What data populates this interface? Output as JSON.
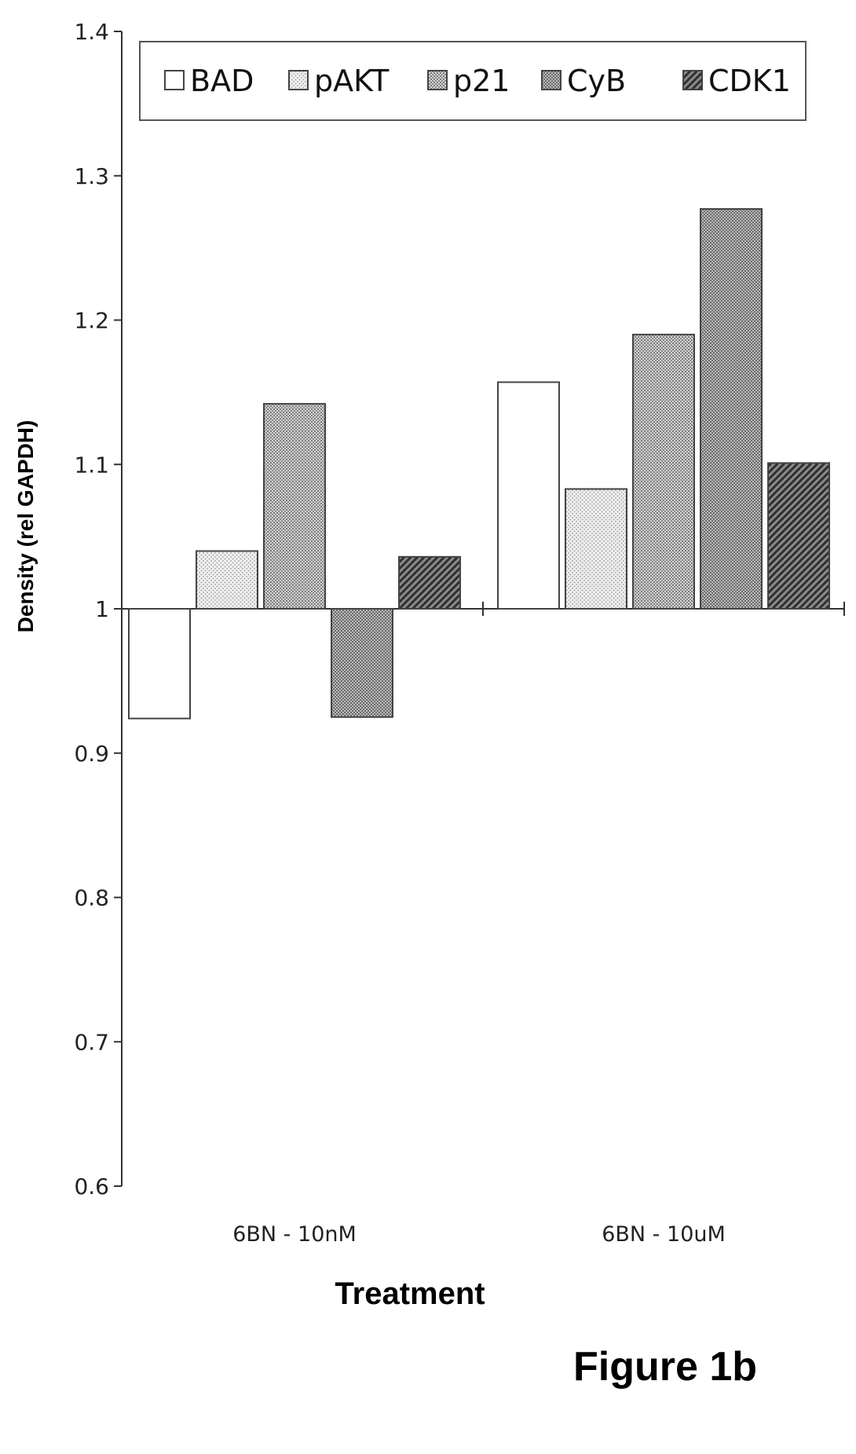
{
  "figure": {
    "caption": "Figure 1b"
  },
  "chart_data": {
    "type": "bar",
    "title": "",
    "xlabel": "Treatment",
    "ylabel": "Density (rel GAPDH)",
    "ylim": [
      0.6,
      1.4
    ],
    "baseline": 1,
    "yticks": [
      0.6,
      0.7,
      0.8,
      0.9,
      1,
      1.1,
      1.2,
      1.3,
      1.4
    ],
    "ytick_labels": [
      "0.6",
      "0.7",
      "0.8",
      "0.9",
      "1",
      "1.1",
      "1.2",
      "1.3",
      "1.4"
    ],
    "categories": [
      "6BN - 10nM",
      "6BN - 10uM"
    ],
    "legend_position": "top",
    "grid": false,
    "series": [
      {
        "name": "BAD",
        "values": [
          0.924,
          1.157
        ]
      },
      {
        "name": "pAKT",
        "values": [
          1.04,
          1.083
        ]
      },
      {
        "name": "p21",
        "values": [
          1.142,
          1.19
        ]
      },
      {
        "name": "CyB",
        "values": [
          0.925,
          1.277
        ]
      },
      {
        "name": "CDK1",
        "values": [
          1.036,
          1.101
        ]
      }
    ]
  }
}
